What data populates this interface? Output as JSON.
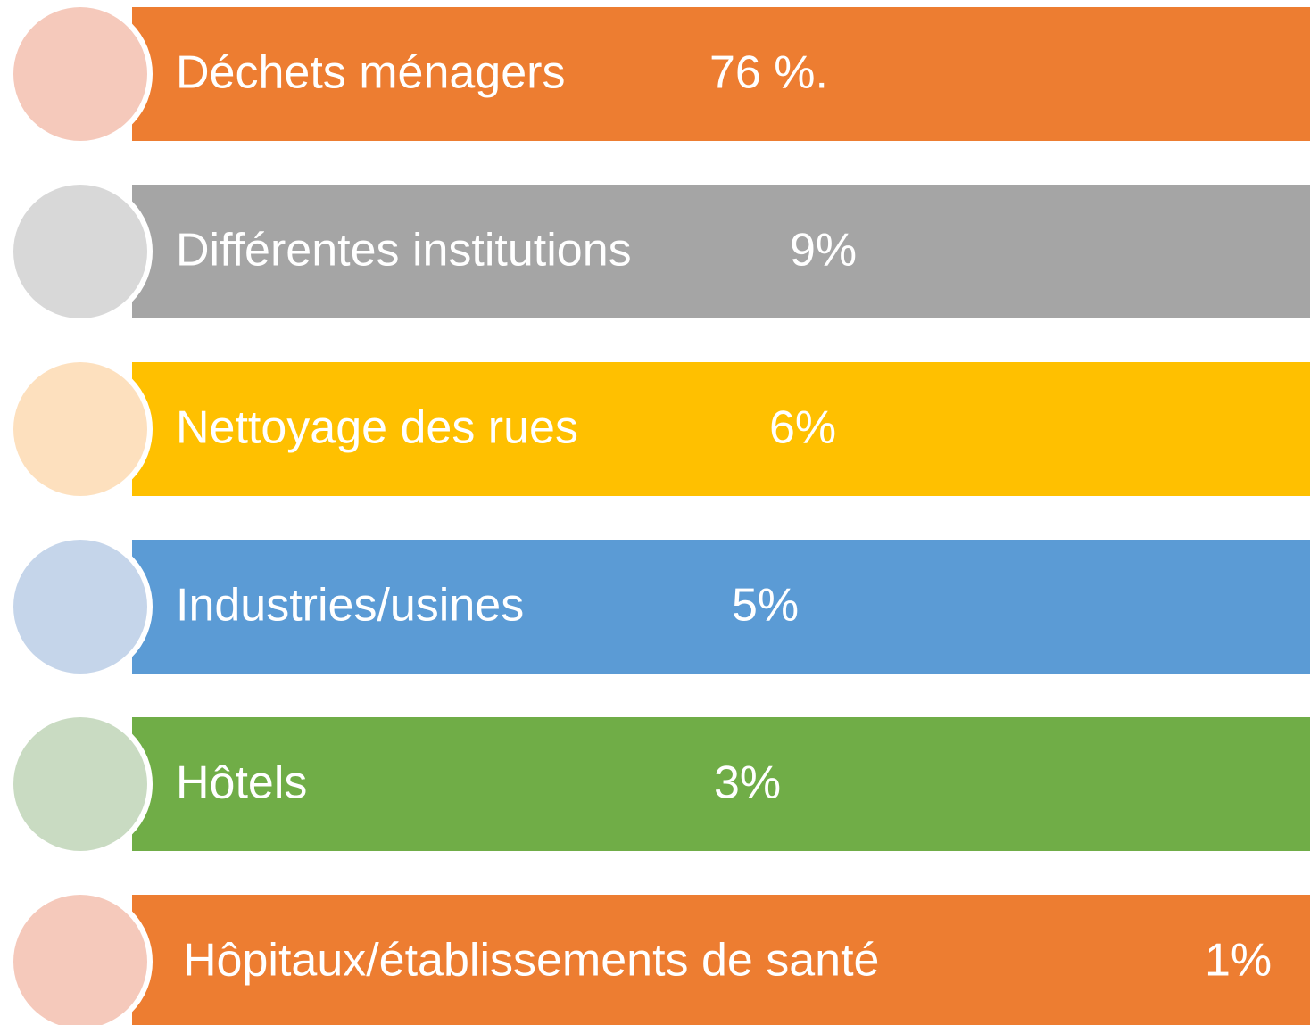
{
  "items": [
    {
      "label": "Déchets ménagers",
      "value": "76 %.",
      "color": "#ED7D31",
      "circle_color": "#F5C9BB"
    },
    {
      "label": "Différentes institutions",
      "value": "9%",
      "color": "#A5A5A5",
      "circle_color": "#D8D8D8"
    },
    {
      "label": "Nettoyage des rues",
      "value": "6%",
      "color": "#FFC000",
      "circle_color": "#FDE0BE"
    },
    {
      "label": "Industries/usines",
      "value": "5%",
      "color": "#5B9BD5",
      "circle_color": "#C5D5EA"
    },
    {
      "label": "Hôtels",
      "value": "3%",
      "color": "#70AD47",
      "circle_color": "#C9DBC2"
    },
    {
      "label": "Hôpitaux/établissements de santé",
      "value": "1%",
      "color": "#ED7D31",
      "circle_color": "#F5C9BB"
    }
  ]
}
